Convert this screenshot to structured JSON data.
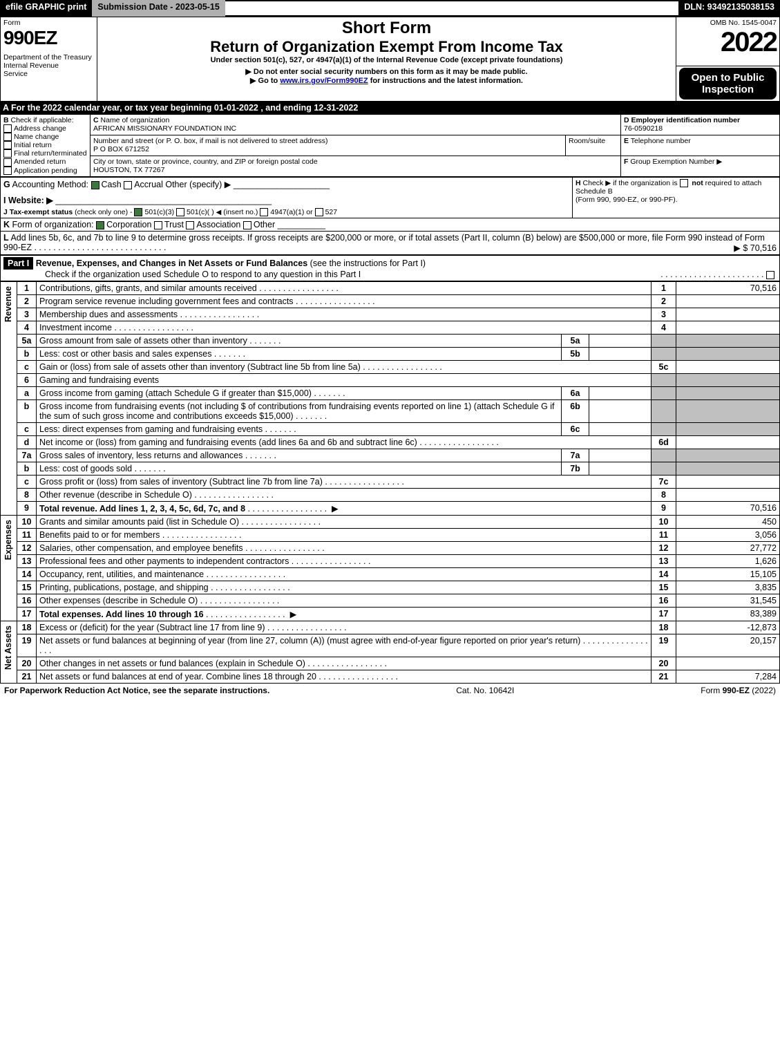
{
  "topbar": {
    "efile": "efile GRAPHIC print",
    "submission": "Submission Date - 2023-05-15",
    "dln": "DLN: 93492135038153"
  },
  "header": {
    "form_word": "Form",
    "form_no": "990EZ",
    "dept": "Department of the Treasury\nInternal Revenue\nService",
    "short_form": "Short Form",
    "title": "Return of Organization Exempt From Income Tax",
    "sub1": "Under section 501(c), 527, or 4947(a)(1) of the Internal Revenue Code (except private foundations)",
    "sub2": "▶ Do not enter social security numbers on this form as it may be made public.",
    "sub3_pre": "▶ Go to ",
    "sub3_link": "www.irs.gov/Form990EZ",
    "sub3_post": " for instructions and the latest information.",
    "omb": "OMB No. 1545-0047",
    "year": "2022",
    "open": "Open to Public Inspection"
  },
  "section_a": "A  For the 2022 calendar year, or tax year beginning 01-01-2022  , and ending 12-31-2022",
  "B": {
    "title": "Check if applicable:",
    "opts": [
      "Address change",
      "Name change",
      "Initial return",
      "Final return/terminated",
      "Amended return",
      "Application pending"
    ]
  },
  "C": {
    "label_name": "Name of organization",
    "name": "AFRICAN MISSIONARY FOUNDATION INC",
    "label_addr": "Number and street (or P. O. box, if mail is not delivered to street address)",
    "room": "Room/suite",
    "addr": "P O BOX 671252",
    "label_city": "City or town, state or province, country, and ZIP or foreign postal code",
    "city": "HOUSTON, TX  77267"
  },
  "D": {
    "label": "Employer identification number",
    "val": "76-0590218"
  },
  "E": {
    "label": "Telephone number",
    "val": ""
  },
  "F": {
    "label": "Group Exemption Number  ▶",
    "val": ""
  },
  "G": {
    "label": "Accounting Method:",
    "cash": "Cash",
    "accrual": "Accrual",
    "other": "Other (specify) ▶"
  },
  "H": {
    "text": "Check ▶       if the organization is ",
    "not": "not",
    "text2": " required to attach Schedule B",
    "text3": "(Form 990, 990-EZ, or 990-PF)."
  },
  "I": {
    "label": "Website: ▶"
  },
  "J": {
    "label": "Tax-exempt status",
    "note": "(check only one) -",
    "o1": "501(c)(3)",
    "o2": "501(c)(  )",
    "o2b": "(insert no.)",
    "o3": "4947(a)(1) or",
    "o4": "527"
  },
  "K": {
    "label": "Form of organization:",
    "o1": "Corporation",
    "o2": "Trust",
    "o3": "Association",
    "o4": "Other"
  },
  "L": {
    "text": "Add lines 5b, 6c, and 7b to line 9 to determine gross receipts. If gross receipts are $200,000 or more, or if total assets (Part II, column (B) below) are $500,000 or more, file Form 990 instead of Form 990-EZ",
    "amt": "▶ $ 70,516"
  },
  "part1": {
    "title": "Revenue, Expenses, and Changes in Net Assets or Fund Balances",
    "note": "(see the instructions for Part I)",
    "check": "Check if the organization used Schedule O to respond to any question in this Part I"
  },
  "groups": {
    "rev": "Revenue",
    "exp": "Expenses",
    "na": "Net Assets"
  },
  "lines": [
    {
      "n": "1",
      "d": "Contributions, gifts, grants, and similar amounts received",
      "c": "1",
      "a": "70,516"
    },
    {
      "n": "2",
      "d": "Program service revenue including government fees and contracts",
      "c": "2",
      "a": ""
    },
    {
      "n": "3",
      "d": "Membership dues and assessments",
      "c": "3",
      "a": ""
    },
    {
      "n": "4",
      "d": "Investment income",
      "c": "4",
      "a": ""
    },
    {
      "n": "5a",
      "d": "Gross amount from sale of assets other than inventory",
      "sub": "5a",
      "sv": ""
    },
    {
      "n": "b",
      "d": "Less: cost or other basis and sales expenses",
      "sub": "5b",
      "sv": ""
    },
    {
      "n": "c",
      "d": "Gain or (loss) from sale of assets other than inventory (Subtract line 5b from line 5a)",
      "c": "5c",
      "a": ""
    },
    {
      "n": "6",
      "d": "Gaming and fundraising events",
      "shade": true
    },
    {
      "n": "a",
      "d": "Gross income from gaming (attach Schedule G if greater than $15,000)",
      "sub": "6a",
      "sv": ""
    },
    {
      "n": "b",
      "d": "Gross income from fundraising events (not including $                         of contributions from fundraising events reported on line 1) (attach Schedule G if the sum of such gross income and contributions exceeds $15,000)",
      "sub": "6b",
      "sv": ""
    },
    {
      "n": "c",
      "d": "Less: direct expenses from gaming and fundraising events",
      "sub": "6c",
      "sv": ""
    },
    {
      "n": "d",
      "d": "Net income or (loss) from gaming and fundraising events (add lines 6a and 6b and subtract line 6c)",
      "c": "6d",
      "a": ""
    },
    {
      "n": "7a",
      "d": "Gross sales of inventory, less returns and allowances",
      "sub": "7a",
      "sv": ""
    },
    {
      "n": "b",
      "d": "Less: cost of goods sold",
      "sub": "7b",
      "sv": ""
    },
    {
      "n": "c",
      "d": "Gross profit or (loss) from sales of inventory (Subtract line 7b from line 7a)",
      "c": "7c",
      "a": ""
    },
    {
      "n": "8",
      "d": "Other revenue (describe in Schedule O)",
      "c": "8",
      "a": ""
    },
    {
      "n": "9",
      "d": "Total revenue. Add lines 1, 2, 3, 4, 5c, 6d, 7c, and 8",
      "c": "9",
      "a": "70,516",
      "bold": true,
      "arrow": true
    }
  ],
  "exp_lines": [
    {
      "n": "10",
      "d": "Grants and similar amounts paid (list in Schedule O)",
      "c": "10",
      "a": "450"
    },
    {
      "n": "11",
      "d": "Benefits paid to or for members",
      "c": "11",
      "a": "3,056"
    },
    {
      "n": "12",
      "d": "Salaries, other compensation, and employee benefits",
      "c": "12",
      "a": "27,772"
    },
    {
      "n": "13",
      "d": "Professional fees and other payments to independent contractors",
      "c": "13",
      "a": "1,626"
    },
    {
      "n": "14",
      "d": "Occupancy, rent, utilities, and maintenance",
      "c": "14",
      "a": "15,105"
    },
    {
      "n": "15",
      "d": "Printing, publications, postage, and shipping",
      "c": "15",
      "a": "3,835"
    },
    {
      "n": "16",
      "d": "Other expenses (describe in Schedule O)",
      "c": "16",
      "a": "31,545"
    },
    {
      "n": "17",
      "d": "Total expenses. Add lines 10 through 16",
      "c": "17",
      "a": "83,389",
      "bold": true,
      "arrow": true
    }
  ],
  "na_lines": [
    {
      "n": "18",
      "d": "Excess or (deficit) for the year (Subtract line 17 from line 9)",
      "c": "18",
      "a": "-12,873"
    },
    {
      "n": "19",
      "d": "Net assets or fund balances at beginning of year (from line 27, column (A)) (must agree with end-of-year figure reported on prior year's return)",
      "c": "19",
      "a": "20,157"
    },
    {
      "n": "20",
      "d": "Other changes in net assets or fund balances (explain in Schedule O)",
      "c": "20",
      "a": ""
    },
    {
      "n": "21",
      "d": "Net assets or fund balances at end of year. Combine lines 18 through 20",
      "c": "21",
      "a": "7,284"
    }
  ],
  "footer": {
    "left": "For Paperwork Reduction Act Notice, see the separate instructions.",
    "mid": "Cat. No. 10642I",
    "right_pre": "Form ",
    "right_form": "990-EZ",
    "right_post": " (2022)"
  }
}
